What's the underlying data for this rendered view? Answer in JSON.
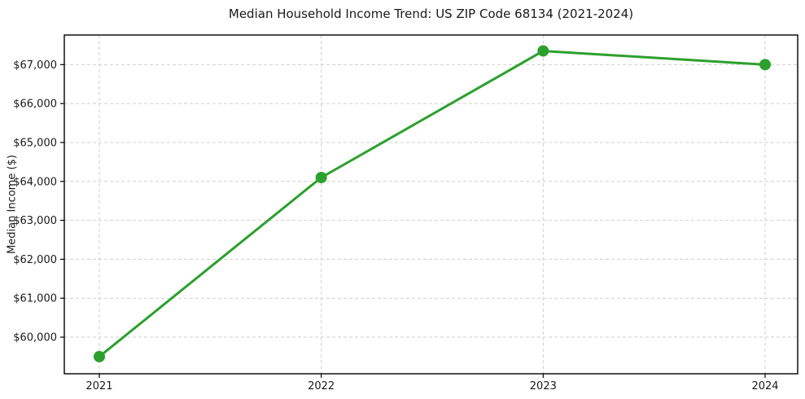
{
  "chart_data": {
    "type": "line",
    "title": "Median Household Income Trend: US ZIP Code 68134 (2021-2024)",
    "xlabel": "",
    "ylabel": "Median Income ($)",
    "x": [
      2021,
      2022,
      2023,
      2024
    ],
    "xtick_labels": [
      "2021",
      "2022",
      "2023",
      "2024"
    ],
    "series": [
      {
        "name": "Median Household Income",
        "values": [
          59500,
          64100,
          67350,
          67000
        ]
      }
    ],
    "ylim": [
      59060,
      67760
    ],
    "yticks": [
      60000,
      61000,
      62000,
      63000,
      64000,
      65000,
      66000,
      67000
    ],
    "ytick_labels": [
      "$60,000",
      "$61,000",
      "$62,000",
      "$63,000",
      "$64,000",
      "$65,000",
      "$66,000",
      "$67,000"
    ],
    "grid": true,
    "grid_style": "dashed",
    "legend": "none",
    "colors": {
      "line": "#2ca02c",
      "marker": "#2ca02c",
      "grid": "#cfcfcf",
      "axis": "#000000",
      "text": "#1a1a1a",
      "background": "#ffffff"
    }
  }
}
